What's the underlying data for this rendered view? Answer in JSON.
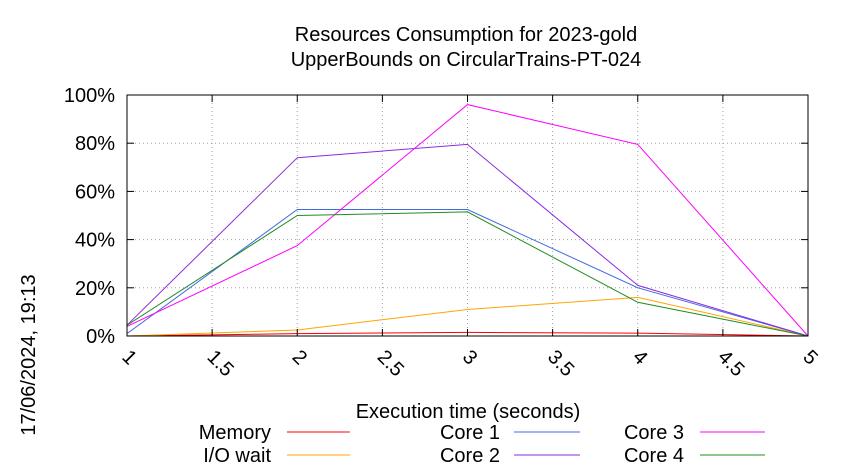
{
  "chart_data": {
    "type": "line",
    "title": [
      "Resources Consumption for 2023-gold",
      "UpperBounds on CircularTrains-PT-024"
    ],
    "xlabel": "Execution time (seconds)",
    "ylabel": "",
    "timestamp": "17/06/2024, 19:13",
    "xlim": [
      1,
      5
    ],
    "ylim": [
      0,
      100
    ],
    "x_ticks": [
      {
        "value": 1,
        "label": "1"
      },
      {
        "value": 1.5,
        "label": "1.5"
      },
      {
        "value": 2,
        "label": "2"
      },
      {
        "value": 2.5,
        "label": "2.5"
      },
      {
        "value": 3,
        "label": "3"
      },
      {
        "value": 3.5,
        "label": "3.5"
      },
      {
        "value": 4,
        "label": "4"
      },
      {
        "value": 4.5,
        "label": "4.5"
      },
      {
        "value": 5,
        "label": "5"
      }
    ],
    "y_ticks": [
      {
        "value": 0,
        "label": "0%"
      },
      {
        "value": 20,
        "label": "20%"
      },
      {
        "value": 40,
        "label": "40%"
      },
      {
        "value": 60,
        "label": "60%"
      },
      {
        "value": 80,
        "label": "80%"
      },
      {
        "value": 100,
        "label": "100%"
      }
    ],
    "grid": true,
    "legend_position": "bottom",
    "x": [
      1,
      2,
      3,
      4,
      5
    ],
    "series": [
      {
        "name": "Memory",
        "color": "#ff0000",
        "values": [
          0,
          1,
          1.5,
          1.2,
          0
        ]
      },
      {
        "name": "I/O wait",
        "color": "#ffa500",
        "values": [
          0,
          2.5,
          11,
          16,
          0
        ]
      },
      {
        "name": "Core 1",
        "color": "#4169e1",
        "values": [
          1,
          52.5,
          52.5,
          20,
          0
        ]
      },
      {
        "name": "Core 2",
        "color": "#8a2be2",
        "values": [
          4.5,
          74,
          79.5,
          21,
          0
        ]
      },
      {
        "name": "Core 3",
        "color": "#ff00ff",
        "values": [
          4,
          37.5,
          96,
          79.5,
          0
        ]
      },
      {
        "name": "Core 4",
        "color": "#228b22",
        "values": [
          4.5,
          50,
          51.5,
          14,
          0
        ]
      }
    ]
  }
}
